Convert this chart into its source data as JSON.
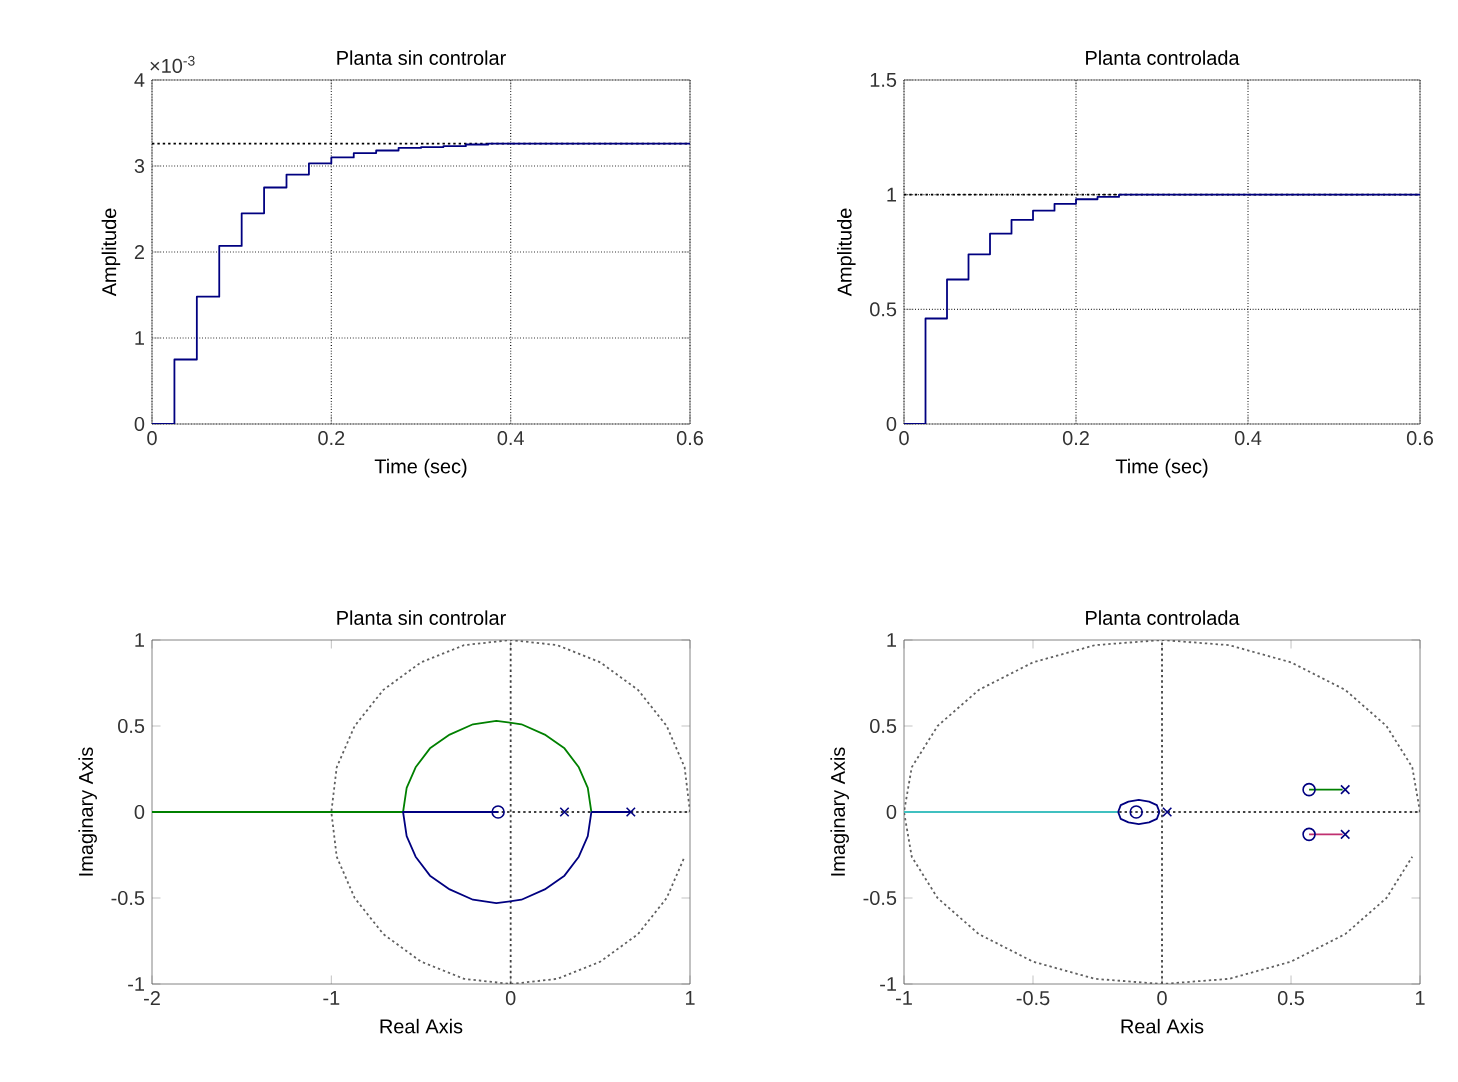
{
  "chart_data": [
    {
      "type": "step",
      "title": "Planta sin controlar",
      "xlabel": "Time (sec)",
      "ylabel": "Amplitude",
      "annotations": [
        "×10$^{-3}$"
      ],
      "xlim": [
        0,
        0.6
      ],
      "ylim": [
        0,
        4
      ],
      "xticks": [
        0,
        0.2,
        0.4,
        0.6
      ],
      "yticks": [
        0,
        1,
        2,
        3,
        4
      ],
      "grid": true,
      "ref_lines": [
        {
          "axis": "y",
          "value": 3.26,
          "color": "#000000",
          "line_style": "dotted"
        }
      ],
      "series": [
        {
          "color": "#000080",
          "x": [
            0,
            0.025,
            0.05,
            0.075,
            0.1,
            0.125,
            0.15,
            0.175,
            0.2,
            0.225,
            0.25,
            0.275,
            0.3,
            0.325,
            0.35,
            0.375,
            0.6
          ],
          "values": [
            0,
            0.75,
            1.48,
            2.07,
            2.45,
            2.75,
            2.9,
            3.03,
            3.1,
            3.15,
            3.18,
            3.21,
            3.22,
            3.23,
            3.25,
            3.26,
            3.26
          ]
        }
      ]
    },
    {
      "type": "step",
      "title": "Planta controlada",
      "xlabel": "Time (sec)",
      "ylabel": "Amplitude",
      "xlim": [
        0,
        0.6
      ],
      "ylim": [
        0,
        1.5
      ],
      "xticks": [
        0,
        0.2,
        0.4,
        0.6
      ],
      "yticks": [
        0,
        0.5,
        1,
        1.5
      ],
      "grid": true,
      "ref_lines": [
        {
          "axis": "y",
          "value": 1,
          "color": "#000000",
          "line_style": "dotted"
        }
      ],
      "series": [
        {
          "color": "#000080",
          "x": [
            0,
            0.025,
            0.05,
            0.075,
            0.1,
            0.125,
            0.15,
            0.175,
            0.2,
            0.225,
            0.25,
            0.6
          ],
          "values": [
            0,
            0.46,
            0.63,
            0.74,
            0.83,
            0.89,
            0.93,
            0.96,
            0.98,
            0.99,
            1.0,
            1.0
          ]
        }
      ]
    },
    {
      "type": "line",
      "title": "Planta sin controlar",
      "xlabel": "Real Axis",
      "ylabel": "Imaginary Axis",
      "xlim": [
        -2,
        1
      ],
      "ylim": [
        -1,
        1
      ],
      "xticks": [
        -2,
        -1,
        0,
        1
      ],
      "yticks": [
        -1,
        -0.5,
        0,
        0.5,
        1
      ],
      "ref_lines": [
        {
          "axis": "x",
          "value": 0,
          "color": "#404040",
          "line_style": "dotted"
        },
        {
          "axis": "y",
          "value": 0,
          "color": "#404040",
          "line_style": "dotted"
        }
      ],
      "series": [
        {
          "color": "#606060",
          "line_style": "dotted",
          "x": [
            1,
            0.97,
            0.87,
            0.71,
            0.5,
            0.26,
            0,
            -0.26,
            -0.5,
            -0.71,
            -0.87,
            -0.97,
            -1,
            -0.97,
            -0.87,
            -0.71,
            -0.5,
            -0.26,
            0,
            0.26,
            0.5,
            0.71,
            0.87,
            0.97
          ],
          "values": [
            0,
            0.26,
            0.5,
            0.71,
            0.87,
            0.97,
            1,
            0.97,
            0.87,
            0.71,
            0.5,
            0.26,
            0,
            -0.26,
            -0.5,
            -0.71,
            -0.87,
            -0.97,
            -1,
            -0.97,
            -0.87,
            -0.71,
            -0.5,
            -0.26
          ]
        },
        {
          "color": "#008000",
          "x": [
            -2,
            -0.6,
            -0.58,
            -0.53,
            -0.45,
            -0.34,
            -0.21,
            -0.08,
            0.06,
            0.19,
            0.3,
            0.38,
            0.43,
            0.45
          ],
          "values": [
            0,
            0,
            0.14,
            0.26,
            0.37,
            0.45,
            0.51,
            0.53,
            0.51,
            0.45,
            0.37,
            0.26,
            0.14,
            0
          ]
        },
        {
          "color": "#000080",
          "x": [
            0.45,
            0.43,
            0.38,
            0.3,
            0.19,
            0.06,
            -0.08,
            -0.21,
            -0.34,
            -0.45,
            -0.53,
            -0.58,
            -0.6,
            -0.07
          ],
          "values": [
            0,
            -0.14,
            -0.26,
            -0.37,
            -0.45,
            -0.51,
            -0.53,
            -0.51,
            -0.45,
            -0.37,
            -0.26,
            -0.14,
            0,
            0
          ]
        },
        {
          "color": "#000080",
          "x": [
            0.45,
            0.67
          ],
          "values": [
            0,
            0
          ]
        },
        {
          "type": "scatter",
          "marker": "circle",
          "color": "#000080",
          "x": [
            -0.07
          ],
          "values": [
            0
          ]
        },
        {
          "type": "scatter",
          "marker": "cross",
          "color": "#000080",
          "x": [
            0.3,
            0.67
          ],
          "values": [
            0,
            0
          ]
        }
      ]
    },
    {
      "type": "line",
      "title": "Planta controlada",
      "xlabel": "Real Axis",
      "ylabel": "Imaginary Axis",
      "xlim": [
        -1,
        1
      ],
      "ylim": [
        -1,
        1
      ],
      "xticks": [
        -1,
        -0.5,
        0,
        0.5,
        1
      ],
      "yticks": [
        -1,
        -0.5,
        0,
        0.5,
        1
      ],
      "ref_lines": [
        {
          "axis": "x",
          "value": 0,
          "color": "#404040",
          "line_style": "dotted"
        },
        {
          "axis": "y",
          "value": 0,
          "color": "#404040",
          "line_style": "dotted"
        }
      ],
      "series": [
        {
          "color": "#606060",
          "line_style": "dotted",
          "x": [
            1,
            0.97,
            0.87,
            0.71,
            0.5,
            0.26,
            0,
            -0.26,
            -0.5,
            -0.71,
            -0.87,
            -0.97,
            -1,
            -0.97,
            -0.87,
            -0.71,
            -0.5,
            -0.26,
            0,
            0.26,
            0.5,
            0.71,
            0.87,
            0.97
          ],
          "values": [
            0,
            0.26,
            0.5,
            0.71,
            0.87,
            0.97,
            1,
            0.97,
            0.87,
            0.71,
            0.5,
            0.26,
            0,
            -0.26,
            -0.5,
            -0.71,
            -0.87,
            -0.97,
            -1,
            -0.97,
            -0.87,
            -0.71,
            -0.5,
            -0.26
          ]
        },
        {
          "color": "#40c0c0",
          "x": [
            -1,
            -0.17
          ],
          "values": [
            0,
            0
          ]
        },
        {
          "color": "#000080",
          "x": [
            -0.17,
            -0.16,
            -0.13,
            -0.09,
            -0.05,
            -0.02,
            -0.01
          ],
          "values": [
            0,
            0.04,
            0.06,
            0.07,
            0.06,
            0.04,
            0
          ]
        },
        {
          "color": "#000080",
          "x": [
            -0.01,
            -0.02,
            -0.05,
            -0.09,
            -0.13,
            -0.16,
            -0.17
          ],
          "values": [
            0,
            -0.04,
            -0.06,
            -0.07,
            -0.06,
            -0.04,
            0
          ]
        },
        {
          "color": "#008000",
          "x": [
            0.57,
            0.7
          ],
          "values": [
            0.13,
            0.13
          ]
        },
        {
          "color": "#c03070",
          "x": [
            0.57,
            0.7
          ],
          "values": [
            -0.13,
            -0.13
          ]
        },
        {
          "type": "scatter",
          "marker": "circle",
          "color": "#000080",
          "x": [
            -0.1,
            0.57,
            0.57
          ],
          "values": [
            0,
            0.13,
            -0.13
          ]
        },
        {
          "type": "scatter",
          "marker": "cross",
          "color": "#000080",
          "x": [
            0.02,
            0.71,
            0.71
          ],
          "values": [
            0,
            0.13,
            -0.13
          ]
        }
      ]
    }
  ]
}
